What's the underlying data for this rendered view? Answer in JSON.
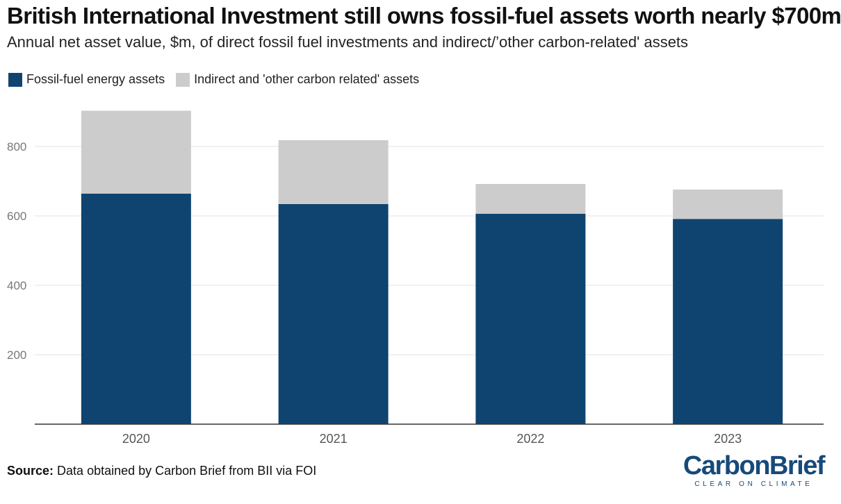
{
  "header": {
    "title": "British International Investment still owns fossil-fuel assets worth nearly $700m",
    "subtitle": "Annual net asset value, $m, of direct fossil fuel investments and indirect/’other carbon-related' assets"
  },
  "legend": {
    "items": [
      {
        "label": "Fossil-fuel energy assets",
        "color": "#0f4470"
      },
      {
        "label": "Indirect and 'other carbon related' assets",
        "color": "#cccccc"
      }
    ]
  },
  "footer": {
    "source_label": "Source:",
    "source_text": "Data obtained by Carbon Brief from BII via FOI",
    "logo_carbon": "Carbon",
    "logo_brief": "Brief",
    "logo_tagline": "CLEAR ON CLIMATE"
  },
  "chart_data": {
    "type": "bar",
    "stacked": true,
    "title": "British International Investment still owns fossil-fuel assets worth nearly $700m",
    "subtitle": "Annual net asset value, $m, of direct fossil fuel investments and indirect/’other carbon-related' assets",
    "categories": [
      "2020",
      "2021",
      "2022",
      "2023"
    ],
    "series": [
      {
        "name": "Fossil-fuel energy assets",
        "color": "#0f4470",
        "values": [
          664,
          634,
          606,
          591
        ]
      },
      {
        "name": "Indirect and 'other carbon related' assets",
        "color": "#cccccc",
        "values": [
          239,
          184,
          86,
          85
        ]
      }
    ],
    "yticks": [
      200,
      400,
      600,
      800
    ],
    "ylim": [
      0,
      900
    ],
    "grid": true,
    "legend_position": "top-left"
  }
}
